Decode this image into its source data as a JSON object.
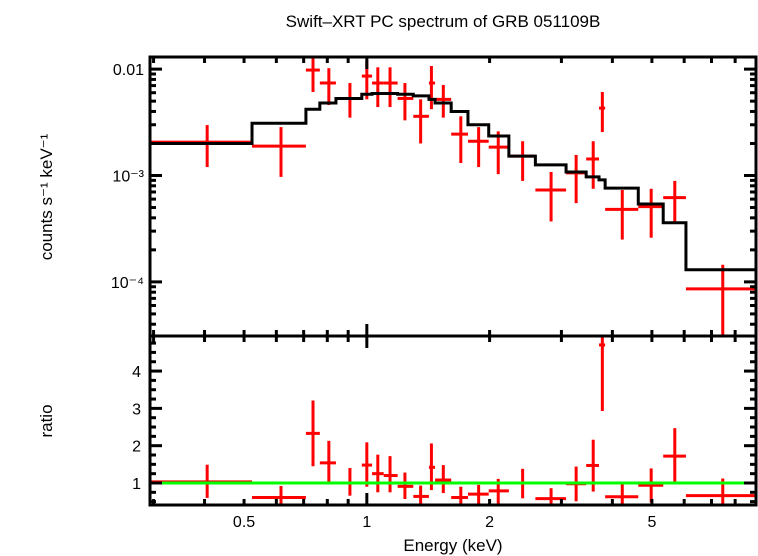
{
  "chart_data": [
    {
      "type": "line",
      "panel": "spectrum",
      "title": "Swift–XRT PC spectrum of GRB 051109B",
      "ylabel": "counts s⁻¹ keV⁻¹",
      "xlabel": "",
      "xscale": "log",
      "yscale": "log",
      "xlim": [
        0.294,
        9.0
      ],
      "ylim": [
        3.1e-05,
        0.013
      ],
      "y_tick_labels": [
        {
          "value": 0.01,
          "label": "0.01"
        },
        {
          "value": 0.001,
          "label": "10⁻³"
        },
        {
          "value": 0.0001,
          "label": "10⁻⁴"
        }
      ],
      "colors": {
        "data": "#ff0000",
        "model": "#000000"
      },
      "series": [
        {
          "kind": "data-with-errors",
          "points": [
            {
              "x": 0.406,
              "xlo": 0.294,
              "xhi": 0.523,
              "y": 0.00206,
              "ylo": 0.0012,
              "yhi": 0.00298
            },
            {
              "x": 0.616,
              "xlo": 0.523,
              "xhi": 0.709,
              "y": 0.00189,
              "ylo": 0.00097,
              "yhi": 0.00285
            },
            {
              "x": 0.738,
              "xlo": 0.709,
              "xhi": 0.767,
              "y": 0.0098,
              "ylo": 0.0061,
              "yhi": 0.0135
            },
            {
              "x": 0.807,
              "xlo": 0.767,
              "xhi": 0.84,
              "y": 0.0074,
              "ylo": 0.0046,
              "yhi": 0.0102
            },
            {
              "x": 0.909,
              "xlo": 0.84,
              "xhi": 0.972,
              "y": 0.0053,
              "ylo": 0.0035,
              "yhi": 0.0074
            },
            {
              "x": 1.0,
              "xlo": 0.972,
              "xhi": 1.03,
              "y": 0.0086,
              "ylo": 0.0052,
              "yhi": 0.0121
            },
            {
              "x": 1.064,
              "xlo": 1.03,
              "xhi": 1.1,
              "y": 0.0074,
              "ylo": 0.0044,
              "yhi": 0.0104
            },
            {
              "x": 1.14,
              "xlo": 1.1,
              "xhi": 1.19,
              "y": 0.0074,
              "ylo": 0.0044,
              "yhi": 0.0104
            },
            {
              "x": 1.24,
              "xlo": 1.19,
              "xhi": 1.3,
              "y": 0.0053,
              "ylo": 0.0033,
              "yhi": 0.0074
            },
            {
              "x": 1.355,
              "xlo": 1.3,
              "xhi": 1.42,
              "y": 0.0036,
              "ylo": 0.002,
              "yhi": 0.0052
            },
            {
              "x": 1.44,
              "xlo": 1.42,
              "xhi": 1.47,
              "y": 0.0074,
              "ylo": 0.0042,
              "yhi": 0.0107
            },
            {
              "x": 1.54,
              "xlo": 1.47,
              "xhi": 1.61,
              "y": 0.0052,
              "ylo": 0.0035,
              "yhi": 0.0071
            },
            {
              "x": 1.7,
              "xlo": 1.61,
              "xhi": 1.77,
              "y": 0.00245,
              "ylo": 0.00131,
              "yhi": 0.0036
            },
            {
              "x": 1.88,
              "xlo": 1.77,
              "xhi": 1.99,
              "y": 0.0021,
              "ylo": 0.0012,
              "yhi": 0.00285
            },
            {
              "x": 2.1,
              "xlo": 1.99,
              "xhi": 2.23,
              "y": 0.00185,
              "ylo": 0.00103,
              "yhi": 0.0026
            },
            {
              "x": 2.41,
              "xlo": 2.23,
              "xhi": 2.59,
              "y": 0.00152,
              "ylo": 0.00089,
              "yhi": 0.0021
            },
            {
              "x": 2.83,
              "xlo": 2.59,
              "xhi": 3.08,
              "y": 0.00073,
              "ylo": 0.00037,
              "yhi": 0.00108
            },
            {
              "x": 3.26,
              "xlo": 3.08,
              "xhi": 3.45,
              "y": 0.00106,
              "ylo": 0.00055,
              "yhi": 0.00156
            },
            {
              "x": 3.59,
              "xlo": 3.45,
              "xhi": 3.71,
              "y": 0.00143,
              "ylo": 0.00075,
              "yhi": 0.0021
            },
            {
              "x": 3.78,
              "xlo": 3.71,
              "xhi": 3.84,
              "y": 0.0043,
              "ylo": 0.00256,
              "yhi": 0.0061
            },
            {
              "x": 4.23,
              "xlo": 3.84,
              "xhi": 4.63,
              "y": 0.00048,
              "ylo": 0.00025,
              "yhi": 0.00073
            },
            {
              "x": 4.98,
              "xlo": 4.63,
              "xhi": 5.33,
              "y": 0.00051,
              "ylo": 0.00026,
              "yhi": 0.00075
            },
            {
              "x": 5.69,
              "xlo": 5.33,
              "xhi": 6.06,
              "y": 0.00062,
              "ylo": 0.00037,
              "yhi": 0.00089
            },
            {
              "x": 7.46,
              "xlo": 6.06,
              "xhi": 9.0,
              "y": 8.6e-05,
              "ylo": 3e-05,
              "yhi": 0.000145
            }
          ]
        },
        {
          "kind": "model-histogram",
          "edges": [
            0.294,
            0.523,
            0.709,
            0.767,
            0.84,
            0.972,
            1.03,
            1.19,
            1.3,
            1.42,
            1.47,
            1.61,
            1.77,
            1.99,
            2.23,
            2.59,
            3.08,
            3.45,
            3.71,
            3.84,
            4.63,
            5.33,
            6.06,
            9.0
          ],
          "values": [
            0.002,
            0.0031,
            0.0042,
            0.0048,
            0.0053,
            0.0058,
            0.0059,
            0.0058,
            0.0056,
            0.0052,
            0.0048,
            0.004,
            0.003,
            0.00235,
            0.00152,
            0.00126,
            0.00108,
            0.00097,
            0.00091,
            0.00076,
            0.00054,
            0.00036,
            0.00013
          ]
        }
      ]
    },
    {
      "type": "scatter",
      "panel": "ratio",
      "ylabel": "ratio",
      "xlabel": "Energy (keV)",
      "xscale": "log",
      "xlim": [
        0.294,
        9.0
      ],
      "ylim": [
        0.41,
        4.94
      ],
      "x_tick_labels": [
        {
          "value": 0.5,
          "label": "0.5"
        },
        {
          "value": 1,
          "label": "1"
        },
        {
          "value": 2,
          "label": "2"
        },
        {
          "value": 5,
          "label": "5"
        }
      ],
      "y_tick_labels": [
        {
          "value": 1,
          "label": "1"
        },
        {
          "value": 2,
          "label": "2"
        },
        {
          "value": 3,
          "label": "3"
        },
        {
          "value": 4,
          "label": "4"
        }
      ],
      "reference_line": {
        "y": 1,
        "color": "#00ff00"
      },
      "colors": {
        "data": "#ff0000"
      },
      "points": [
        {
          "x": 0.406,
          "xlo": 0.294,
          "xhi": 0.523,
          "y": 1.03,
          "ylo": 0.6,
          "yhi": 1.49
        },
        {
          "x": 0.616,
          "xlo": 0.523,
          "xhi": 0.709,
          "y": 0.61,
          "ylo": 0.31,
          "yhi": 0.92
        },
        {
          "x": 0.738,
          "xlo": 0.709,
          "xhi": 0.767,
          "y": 2.33,
          "ylo": 1.45,
          "yhi": 3.21
        },
        {
          "x": 0.807,
          "xlo": 0.767,
          "xhi": 0.84,
          "y": 1.54,
          "ylo": 0.96,
          "yhi": 2.13
        },
        {
          "x": 0.909,
          "xlo": 0.84,
          "xhi": 0.972,
          "y": 1.0,
          "ylo": 0.66,
          "yhi": 1.4
        },
        {
          "x": 1.0,
          "xlo": 0.972,
          "xhi": 1.03,
          "y": 1.48,
          "ylo": 0.9,
          "yhi": 2.09
        },
        {
          "x": 1.064,
          "xlo": 1.03,
          "xhi": 1.1,
          "y": 1.25,
          "ylo": 0.75,
          "yhi": 1.76
        },
        {
          "x": 1.14,
          "xlo": 1.1,
          "xhi": 1.19,
          "y": 1.2,
          "ylo": 0.75,
          "yhi": 1.72
        },
        {
          "x": 1.24,
          "xlo": 1.19,
          "xhi": 1.3,
          "y": 0.91,
          "ylo": 0.57,
          "yhi": 1.28
        },
        {
          "x": 1.355,
          "xlo": 1.3,
          "xhi": 1.42,
          "y": 0.64,
          "ylo": 0.36,
          "yhi": 0.93
        },
        {
          "x": 1.44,
          "xlo": 1.42,
          "xhi": 1.47,
          "y": 1.42,
          "ylo": 0.81,
          "yhi": 2.06
        },
        {
          "x": 1.54,
          "xlo": 1.47,
          "xhi": 1.61,
          "y": 1.08,
          "ylo": 0.73,
          "yhi": 1.48
        },
        {
          "x": 1.7,
          "xlo": 1.61,
          "xhi": 1.77,
          "y": 0.61,
          "ylo": 0.33,
          "yhi": 0.9
        },
        {
          "x": 1.88,
          "xlo": 1.77,
          "xhi": 1.99,
          "y": 0.7,
          "ylo": 0.4,
          "yhi": 0.95
        },
        {
          "x": 2.1,
          "xlo": 1.99,
          "xhi": 2.23,
          "y": 0.79,
          "ylo": 0.44,
          "yhi": 1.11
        },
        {
          "x": 2.41,
          "xlo": 2.23,
          "xhi": 2.59,
          "y": 1.0,
          "ylo": 0.59,
          "yhi": 1.38
        },
        {
          "x": 2.83,
          "xlo": 2.59,
          "xhi": 3.08,
          "y": 0.58,
          "ylo": 0.29,
          "yhi": 0.86
        },
        {
          "x": 3.26,
          "xlo": 3.08,
          "xhi": 3.45,
          "y": 0.98,
          "ylo": 0.51,
          "yhi": 1.44
        },
        {
          "x": 3.59,
          "xlo": 3.45,
          "xhi": 3.71,
          "y": 1.47,
          "ylo": 0.77,
          "yhi": 2.16
        },
        {
          "x": 3.78,
          "xlo": 3.71,
          "xhi": 3.84,
          "y": 4.7,
          "ylo": 2.93,
          "yhi": 6.7
        },
        {
          "x": 4.23,
          "xlo": 3.84,
          "xhi": 4.63,
          "y": 0.63,
          "ylo": 0.33,
          "yhi": 0.96
        },
        {
          "x": 4.98,
          "xlo": 4.63,
          "xhi": 5.33,
          "y": 0.94,
          "ylo": 0.48,
          "yhi": 1.39
        },
        {
          "x": 5.69,
          "xlo": 5.33,
          "xhi": 6.06,
          "y": 1.72,
          "ylo": 1.03,
          "yhi": 2.47
        },
        {
          "x": 7.46,
          "xlo": 6.06,
          "xhi": 9.0,
          "y": 0.66,
          "ylo": 0.2,
          "yhi": 1.12
        }
      ]
    }
  ]
}
